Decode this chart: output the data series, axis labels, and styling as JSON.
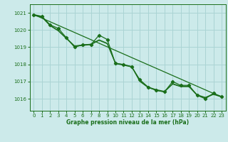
{
  "bg_color": "#cceaea",
  "grid_color": "#aad4d4",
  "line_color": "#1a6e1a",
  "text_color": "#1a6e1a",
  "xlabel": "Graphe pression niveau de la mer (hPa)",
  "xlim": [
    -0.5,
    23.5
  ],
  "ylim": [
    1015.3,
    1021.5
  ],
  "yticks": [
    1016,
    1017,
    1018,
    1019,
    1020,
    1021
  ],
  "xticks": [
    0,
    1,
    2,
    3,
    4,
    5,
    6,
    7,
    8,
    9,
    10,
    11,
    12,
    13,
    14,
    15,
    16,
    17,
    18,
    19,
    20,
    21,
    22,
    23
  ],
  "trend_line": {
    "x": [
      0,
      23
    ],
    "y": [
      1020.9,
      1016.1
    ]
  },
  "line_smooth1": {
    "x": [
      0,
      1,
      2,
      3,
      4,
      5,
      6,
      7,
      8,
      9,
      10,
      11,
      12,
      13,
      14,
      15,
      16,
      17,
      18,
      19,
      20,
      21,
      22,
      23
    ],
    "y": [
      1020.85,
      1020.75,
      1020.25,
      1019.95,
      1019.5,
      1019.05,
      1019.1,
      1019.15,
      1019.4,
      1019.2,
      1018.05,
      1017.95,
      1017.85,
      1017.0,
      1016.65,
      1016.5,
      1016.4,
      1016.85,
      1016.7,
      1016.7,
      1016.2,
      1016.05,
      1016.25,
      1016.1
    ]
  },
  "line_smooth2": {
    "x": [
      0,
      1,
      2,
      3,
      4,
      5,
      6,
      7,
      8,
      9,
      10,
      11,
      12,
      13,
      14,
      15,
      16,
      17,
      18,
      19,
      20,
      21,
      22,
      23
    ],
    "y": [
      1020.88,
      1020.78,
      1020.28,
      1019.98,
      1019.53,
      1019.08,
      1019.13,
      1019.18,
      1019.43,
      1019.23,
      1018.08,
      1017.98,
      1017.88,
      1017.03,
      1016.68,
      1016.53,
      1016.43,
      1016.88,
      1016.73,
      1016.73,
      1016.23,
      1016.08,
      1016.28,
      1016.13
    ]
  },
  "measured_line": {
    "x": [
      0,
      1,
      2,
      3,
      4,
      5,
      6,
      7,
      8,
      9,
      10,
      11,
      12,
      13,
      14,
      15,
      16,
      17,
      18,
      19,
      20,
      21,
      22,
      23
    ],
    "y": [
      1020.9,
      1020.8,
      1020.3,
      1020.1,
      1019.55,
      1019.0,
      1019.15,
      1019.15,
      1019.7,
      1019.45,
      1018.05,
      1018.0,
      1017.85,
      1017.1,
      1016.68,
      1016.48,
      1016.4,
      1017.0,
      1016.78,
      1016.78,
      1016.2,
      1016.0,
      1016.32,
      1016.12
    ]
  }
}
